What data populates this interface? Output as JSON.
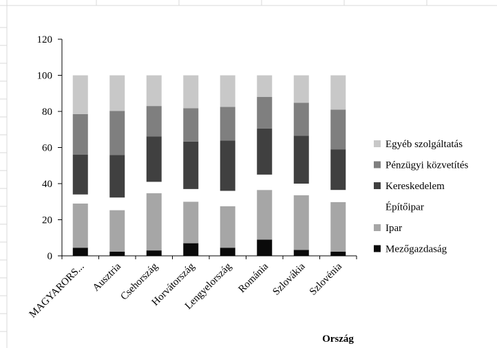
{
  "chart_data": {
    "type": "bar",
    "stacked": true,
    "title": "",
    "xlabel": "Ország",
    "ylabel": "",
    "ylim": [
      0,
      120
    ],
    "yticks": [
      0,
      20,
      40,
      60,
      80,
      100,
      120
    ],
    "categories": [
      "MAGYARORS...",
      "Ausztria",
      "Csehország",
      "Horvátország",
      "Lengyelország",
      "Románia",
      "Szlovákia",
      "Szlovénia"
    ],
    "series": [
      {
        "name": "Mezőgazdaság",
        "color": "#0a0a0a",
        "values": [
          4.5,
          2.3,
          3.0,
          7.0,
          4.5,
          9.0,
          3.3,
          2.3
        ]
      },
      {
        "name": "Ipar",
        "color": "#a6a6a6",
        "values": [
          24.5,
          23.0,
          31.7,
          23.0,
          23.0,
          27.5,
          30.3,
          27.5
        ]
      },
      {
        "name": "Építőipar",
        "color": "#ffffff",
        "values": [
          5.0,
          7.0,
          6.3,
          7.0,
          8.5,
          8.5,
          6.4,
          6.7
        ]
      },
      {
        "name": "Kereskedelem",
        "color": "#404040",
        "values": [
          22.0,
          23.5,
          25.2,
          26.3,
          27.8,
          25.5,
          26.5,
          22.5
        ]
      },
      {
        "name": "Pénzügyi közvetítés",
        "color": "#7f7f7f",
        "values": [
          22.5,
          24.5,
          16.8,
          18.5,
          18.7,
          17.5,
          18.3,
          22.0
        ]
      },
      {
        "name": "Egyéb szolgáltatás",
        "color": "#c8c8c8",
        "values": [
          21.5,
          19.7,
          17.0,
          18.2,
          17.5,
          12.0,
          15.2,
          19.0
        ]
      }
    ],
    "grid": false,
    "legend": "right"
  }
}
